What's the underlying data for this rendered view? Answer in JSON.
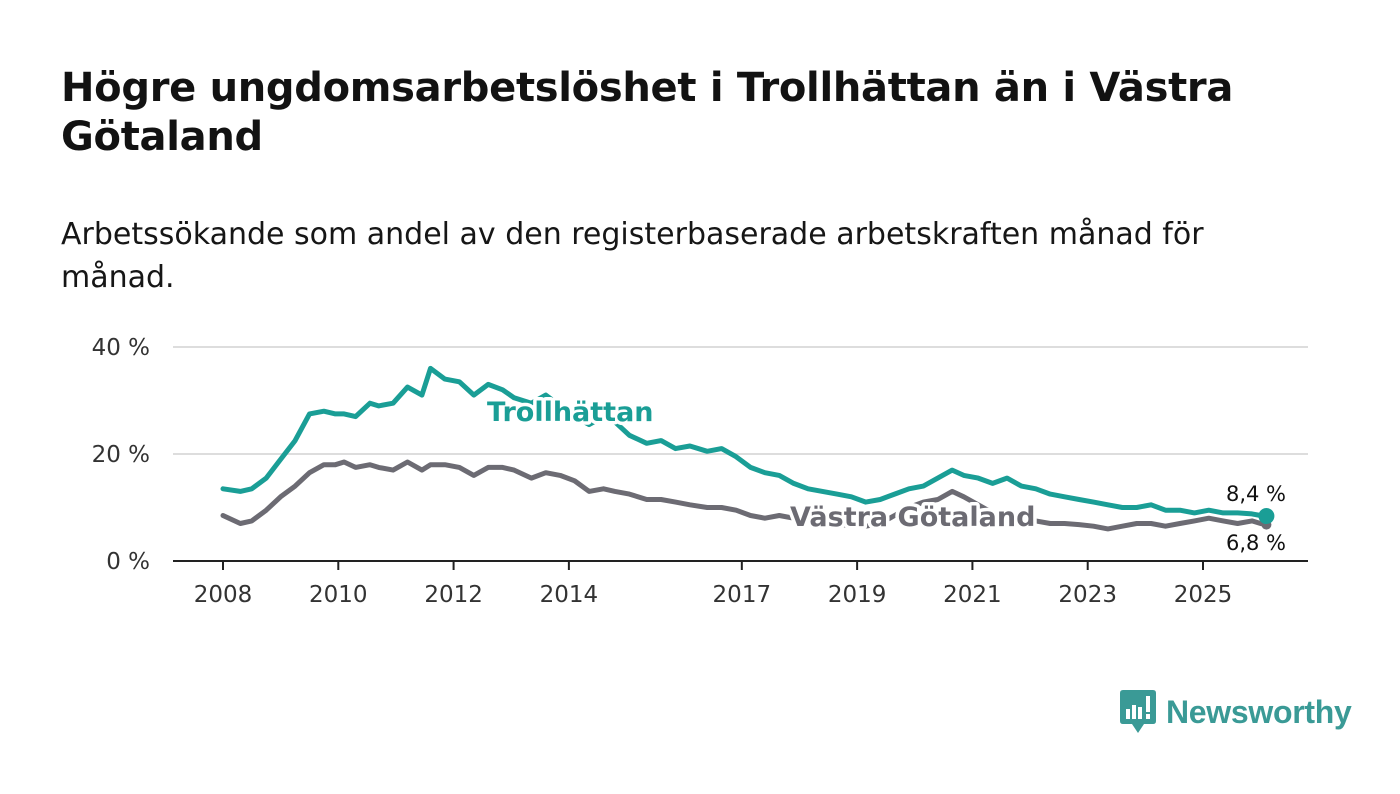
{
  "title": "Högre ungdomsarbetslöshet i Trollhättan än i Västra Götaland",
  "subtitle": "Arbetssökande som andel av den registerbaserade arbetskraften månad för månad.",
  "brand": "Newsworthy",
  "colors": {
    "trollhattan": "#1a9e96",
    "vastra": "#6c6b73",
    "grid": "#dddddd",
    "axis": "#222222",
    "brand": "#3a9a96"
  },
  "chart_data": {
    "type": "line",
    "title": "Högre ungdomsarbetslöshet i Trollhättan än i Västra Götaland",
    "subtitle": "Arbetssökande som andel av den registerbaserade arbetskraften månad för månad.",
    "ylim": [
      0,
      40
    ],
    "yticks": [
      0,
      20,
      40
    ],
    "ytick_labels": [
      "0 %",
      "20 %",
      "40 %"
    ],
    "xlim": [
      2008,
      2026.7
    ],
    "xticks": [
      2008,
      2010,
      2012,
      2014,
      2017,
      2019,
      2021,
      2023,
      2025
    ],
    "xtick_labels": [
      "2008",
      "2010",
      "2012",
      "2014",
      "2017",
      "2019",
      "2021",
      "2023",
      "2025"
    ],
    "grid": true,
    "series": [
      {
        "name": "Trollhättan",
        "color": "#1a9e96",
        "end_label": "8,4 %",
        "x": [
          2008.0,
          2008.3,
          2008.5,
          2008.75,
          2009.0,
          2009.25,
          2009.5,
          2009.75,
          2009.95,
          2010.1,
          2010.3,
          2010.55,
          2010.7,
          2010.95,
          2011.2,
          2011.45,
          2011.6,
          2011.85,
          2012.1,
          2012.35,
          2012.6,
          2012.85,
          2013.05,
          2013.35,
          2013.6,
          2013.85,
          2014.1,
          2014.35,
          2014.6,
          2014.8,
          2015.05,
          2015.35,
          2015.6,
          2015.85,
          2016.1,
          2016.4,
          2016.65,
          2016.9,
          2017.15,
          2017.4,
          2017.65,
          2017.9,
          2018.15,
          2018.4,
          2018.65,
          2018.9,
          2019.15,
          2019.4,
          2019.65,
          2019.9,
          2020.15,
          2020.4,
          2020.65,
          2020.85,
          2021.1,
          2021.35,
          2021.6,
          2021.85,
          2022.1,
          2022.35,
          2022.6,
          2022.85,
          2023.1,
          2023.35,
          2023.6,
          2023.85,
          2024.1,
          2024.35,
          2024.6,
          2024.85,
          2025.1,
          2025.35,
          2025.6,
          2025.85,
          2026.0,
          2026.1
        ],
        "y": [
          13.5,
          13.0,
          13.5,
          15.5,
          19.0,
          22.5,
          27.5,
          28.0,
          27.5,
          27.5,
          27.0,
          29.5,
          29.0,
          29.5,
          32.5,
          31.0,
          36.0,
          34.0,
          33.5,
          31.0,
          33.0,
          32.0,
          30.5,
          29.5,
          31.0,
          29.0,
          27.0,
          25.5,
          27.0,
          26.0,
          23.5,
          22.0,
          22.5,
          21.0,
          21.5,
          20.5,
          21.0,
          19.5,
          17.5,
          16.5,
          16.0,
          14.5,
          13.5,
          13.0,
          12.5,
          12.0,
          11.0,
          11.5,
          12.5,
          13.5,
          14.0,
          15.5,
          17.0,
          16.0,
          15.5,
          14.5,
          15.5,
          14.0,
          13.5,
          12.5,
          12.0,
          11.5,
          11.0,
          10.5,
          10.0,
          10.0,
          10.5,
          9.5,
          9.5,
          9.0,
          9.5,
          9.0,
          9.0,
          8.8,
          8.5,
          8.4
        ]
      },
      {
        "name": "Västra Götaland",
        "color": "#6c6b73",
        "end_label": "6,8 %",
        "x": [
          2008.0,
          2008.3,
          2008.5,
          2008.75,
          2009.0,
          2009.25,
          2009.5,
          2009.75,
          2009.95,
          2010.1,
          2010.3,
          2010.55,
          2010.7,
          2010.95,
          2011.2,
          2011.45,
          2011.6,
          2011.85,
          2012.1,
          2012.35,
          2012.6,
          2012.85,
          2013.05,
          2013.35,
          2013.6,
          2013.85,
          2014.1,
          2014.35,
          2014.6,
          2014.8,
          2015.05,
          2015.35,
          2015.6,
          2015.85,
          2016.1,
          2016.4,
          2016.65,
          2016.9,
          2017.15,
          2017.4,
          2017.65,
          2017.9,
          2018.15,
          2018.4,
          2018.65,
          2018.9,
          2019.15,
          2019.4,
          2019.65,
          2019.9,
          2020.15,
          2020.4,
          2020.65,
          2020.85,
          2021.1,
          2021.35,
          2021.6,
          2021.85,
          2022.1,
          2022.35,
          2022.6,
          2022.85,
          2023.1,
          2023.35,
          2023.6,
          2023.85,
          2024.1,
          2024.35,
          2024.6,
          2024.85,
          2025.1,
          2025.35,
          2025.6,
          2025.85,
          2026.0,
          2026.1
        ],
        "y": [
          8.5,
          7.0,
          7.5,
          9.5,
          12.0,
          14.0,
          16.5,
          18.0,
          18.0,
          18.5,
          17.5,
          18.0,
          17.5,
          17.0,
          18.5,
          17.0,
          18.0,
          18.0,
          17.5,
          16.0,
          17.5,
          17.5,
          17.0,
          15.5,
          16.5,
          16.0,
          15.0,
          13.0,
          13.5,
          13.0,
          12.5,
          11.5,
          11.5,
          11.0,
          10.5,
          10.0,
          10.0,
          9.5,
          8.5,
          8.0,
          8.5,
          8.0,
          7.5,
          7.0,
          7.0,
          6.5,
          6.5,
          7.0,
          8.5,
          10.0,
          11.0,
          11.5,
          13.0,
          12.0,
          10.5,
          9.0,
          8.5,
          8.0,
          7.5,
          7.0,
          7.0,
          6.8,
          6.5,
          6.0,
          6.5,
          7.0,
          7.0,
          6.5,
          7.0,
          7.5,
          8.0,
          7.5,
          7.0,
          7.5,
          7.0,
          6.8
        ]
      }
    ]
  }
}
